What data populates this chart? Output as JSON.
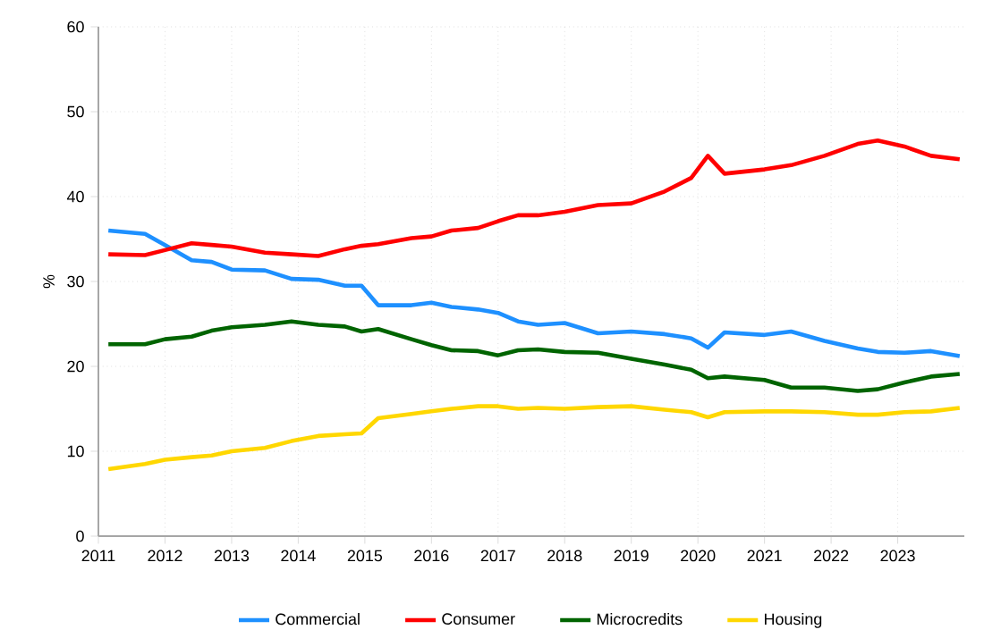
{
  "chart_data": {
    "type": "line",
    "ylabel": "%",
    "xlim": [
      2011,
      2024
    ],
    "ylim": [
      0,
      60
    ],
    "xticks": [
      2011,
      2012,
      2013,
      2014,
      2015,
      2016,
      2017,
      2018,
      2019,
      2020,
      2021,
      2022,
      2023
    ],
    "yticks": [
      0,
      10,
      20,
      30,
      40,
      50,
      60
    ],
    "grid": true,
    "legend": "bottom",
    "marker": "none",
    "line_style": "solid",
    "x": [
      2011.15,
      2011.7,
      2012.0,
      2012.4,
      2012.7,
      2013.0,
      2013.5,
      2013.9,
      2014.3,
      2014.7,
      2014.95,
      2015.2,
      2015.7,
      2016.0,
      2016.3,
      2016.7,
      2017.0,
      2017.3,
      2017.6,
      2018.0,
      2018.5,
      2019.0,
      2019.5,
      2019.9,
      2020.15,
      2020.4,
      2021.0,
      2021.4,
      2021.9,
      2022.4,
      2022.7,
      2023.1,
      2023.5,
      2023.93
    ],
    "series": [
      {
        "name": "Commercial",
        "color": "#1e90ff",
        "values": [
          36.0,
          35.6,
          34.3,
          32.5,
          32.3,
          31.4,
          31.3,
          30.3,
          30.2,
          29.5,
          29.5,
          27.2,
          27.2,
          27.5,
          27.0,
          26.7,
          26.3,
          25.3,
          24.9,
          25.1,
          23.9,
          24.1,
          23.8,
          23.3,
          22.2,
          24.0,
          23.7,
          24.1,
          23.0,
          22.1,
          21.7,
          21.6,
          21.8,
          21.2
        ]
      },
      {
        "name": "Consumer",
        "color": "#ff0000",
        "values": [
          33.2,
          33.1,
          33.7,
          34.5,
          34.3,
          34.1,
          33.4,
          33.2,
          33.0,
          33.8,
          34.2,
          34.4,
          35.1,
          35.3,
          36.0,
          36.3,
          37.1,
          37.8,
          37.8,
          38.2,
          39.0,
          39.2,
          40.6,
          42.2,
          44.8,
          42.7,
          43.2,
          43.7,
          44.8,
          46.2,
          46.6,
          45.9,
          44.8,
          44.4
        ]
      },
      {
        "name": "Microcredits",
        "color": "#006400",
        "values": [
          22.6,
          22.6,
          23.2,
          23.5,
          24.2,
          24.6,
          24.9,
          25.3,
          24.9,
          24.7,
          24.1,
          24.4,
          23.2,
          22.5,
          21.9,
          21.8,
          21.3,
          21.9,
          22.0,
          21.7,
          21.6,
          20.9,
          20.2,
          19.6,
          18.6,
          18.8,
          18.4,
          17.5,
          17.5,
          17.1,
          17.3,
          18.1,
          18.8,
          19.1
        ]
      },
      {
        "name": "Housing",
        "color": "#ffd700",
        "values": [
          7.9,
          8.5,
          9.0,
          9.3,
          9.5,
          10.0,
          10.4,
          11.2,
          11.8,
          12.0,
          12.1,
          13.9,
          14.4,
          14.7,
          15.0,
          15.3,
          15.3,
          15.0,
          15.1,
          15.0,
          15.2,
          15.3,
          14.9,
          14.6,
          14.0,
          14.6,
          14.7,
          14.7,
          14.6,
          14.3,
          14.3,
          14.6,
          14.7,
          15.1
        ]
      }
    ]
  }
}
